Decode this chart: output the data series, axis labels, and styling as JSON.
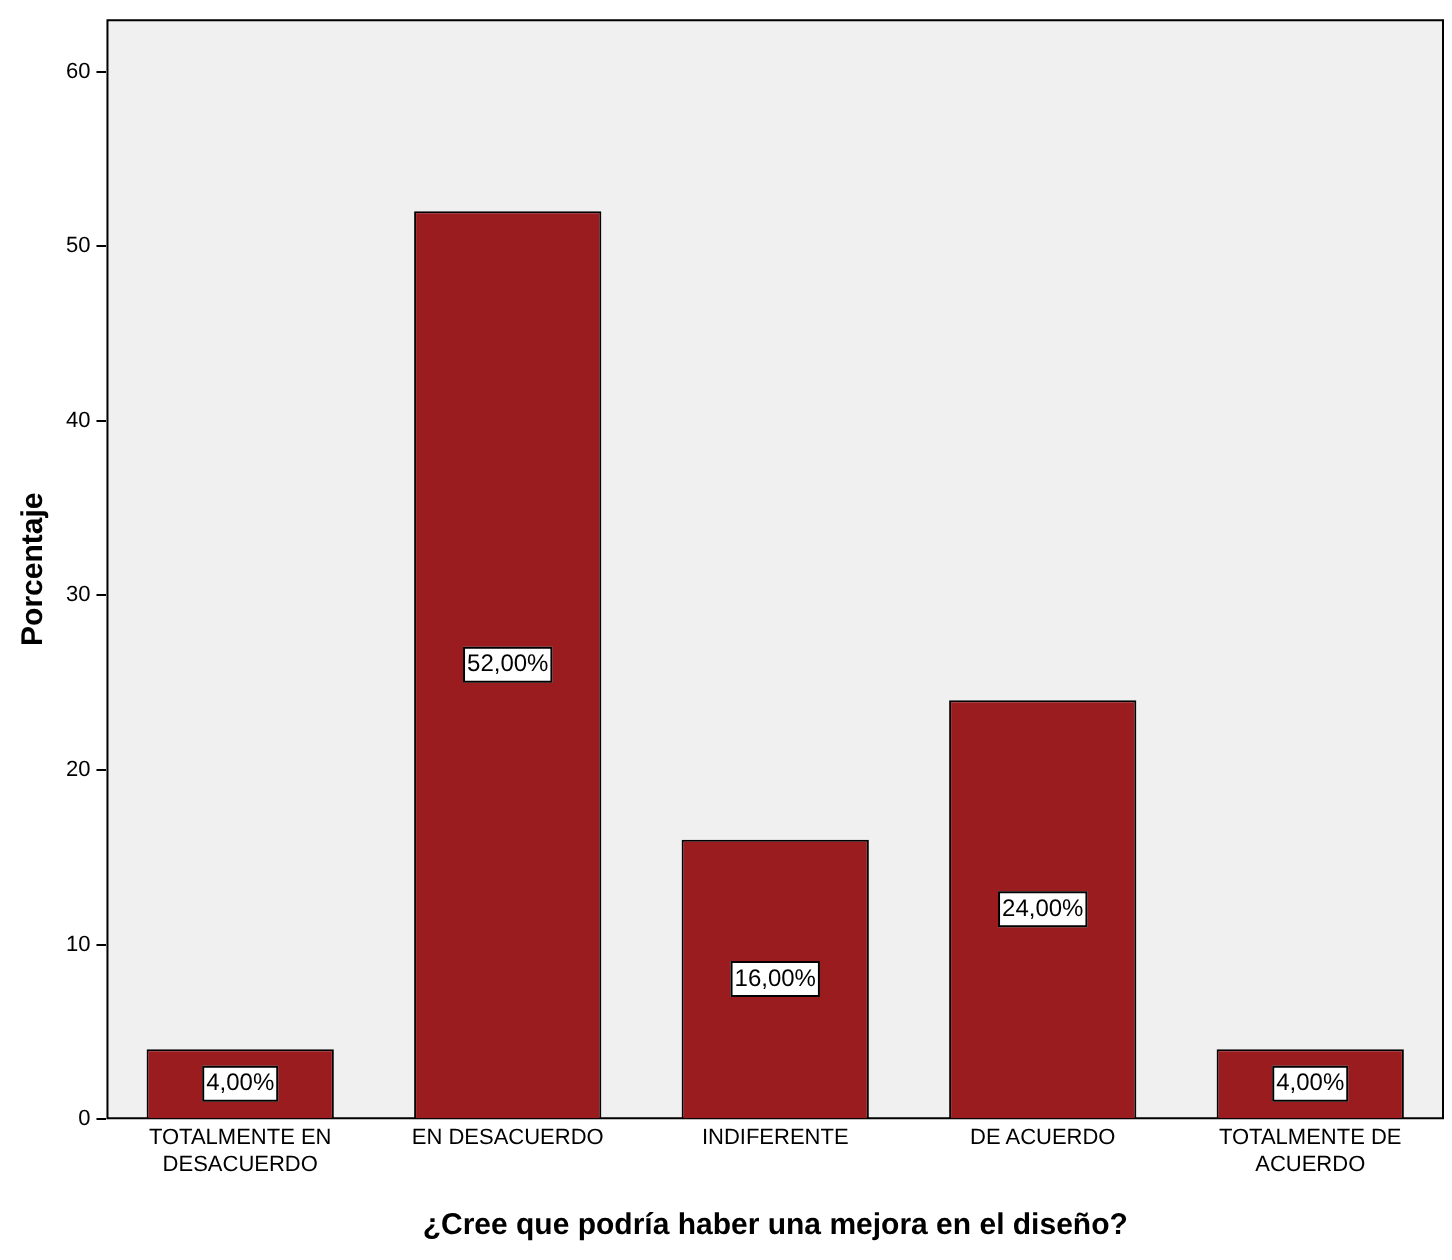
{
  "chart_data": {
    "type": "bar",
    "xlabel": "¿Cree que podría haber una mejora en el diseño?",
    "ylabel": "Porcentaje",
    "categories": [
      "TOTALMENTE EN DESACUERDO",
      "EN DESACUERDO",
      "INDIFERENTE",
      "DE ACUERDO",
      "TOTALMENTE DE ACUERDO"
    ],
    "values": [
      4,
      52,
      16,
      24,
      4
    ],
    "value_labels": [
      "4,00%",
      "52,00%",
      "16,00%",
      "24,00%",
      "4,00%"
    ],
    "color": "#9b1c1f",
    "ylim": [
      0,
      63
    ],
    "yticks": [
      0,
      10,
      20,
      30,
      40,
      50,
      60
    ],
    "grid": false,
    "legend": false
  }
}
